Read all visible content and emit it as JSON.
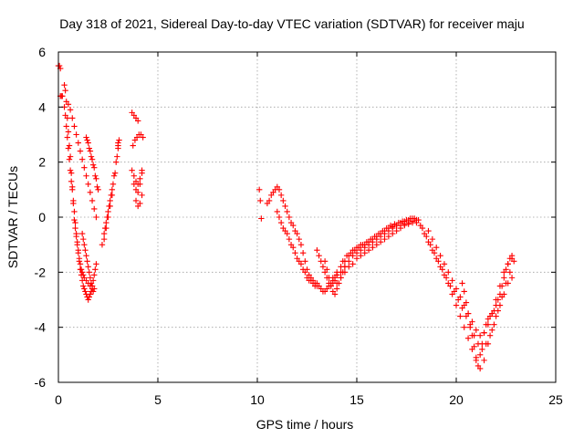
{
  "chart_data": {
    "type": "scatter",
    "title": "Day 318 of 2021, Sidereal Day-to-day VTEC variation (SDTVAR) for receiver maju",
    "xlabel": "GPS time / hours",
    "ylabel": "SDTVAR / TECUs",
    "xlim": [
      0,
      25
    ],
    "ylim": [
      -6,
      6
    ],
    "xticks": [
      "0",
      "5",
      "10",
      "15",
      "20",
      "25"
    ],
    "yticks": [
      "-6",
      "-4",
      "-2",
      "0",
      "2",
      "4",
      "6"
    ],
    "grid": true,
    "marker": "+",
    "color": "#ff0000",
    "series": [
      {
        "name": "SDTVAR",
        "x": [
          0.0,
          0.05,
          0.1,
          0.15,
          0.1,
          0.2,
          0.3,
          0.35,
          0.4,
          0.45,
          0.5,
          0.55,
          0.6,
          0.65,
          0.7,
          0.75,
          0.8,
          0.85,
          0.9,
          0.95,
          1.0,
          1.05,
          1.1,
          1.15,
          1.2,
          1.25,
          1.3,
          1.35,
          1.4,
          1.45,
          1.5,
          1.55,
          1.6,
          1.65,
          1.7,
          1.75,
          1.8,
          1.85,
          1.9,
          0.3,
          0.35,
          0.4,
          0.45,
          0.5,
          0.55,
          0.6,
          0.65,
          0.7,
          0.75,
          0.8,
          0.85,
          0.9,
          0.95,
          1.0,
          1.05,
          1.1,
          1.15,
          1.2,
          1.25,
          1.3,
          1.4,
          1.5,
          1.6,
          1.7,
          1.8,
          0.5,
          0.6,
          0.7,
          0.8,
          0.9,
          1.0,
          1.1,
          1.2,
          1.3,
          1.4,
          1.5,
          1.6,
          1.7,
          1.8,
          1.9,
          1.4,
          1.5,
          1.6,
          1.7,
          1.8,
          1.9,
          2.0,
          1.45,
          1.55,
          1.65,
          1.75,
          1.85,
          1.95,
          1.2,
          1.25,
          1.3,
          1.35,
          1.4,
          1.45,
          1.5,
          1.55,
          1.6,
          1.65,
          1.7,
          1.75,
          2.2,
          2.3,
          2.4,
          2.5,
          2.6,
          2.7,
          2.8,
          2.9,
          3.0,
          2.35,
          2.45,
          2.55,
          2.65,
          2.75,
          2.85,
          2.95,
          3.0,
          2.3,
          2.4,
          2.5,
          2.6,
          2.7,
          3.0,
          3.05,
          3.7,
          3.8,
          3.9,
          4.0,
          3.75,
          3.85,
          3.95,
          4.05,
          4.15,
          4.25,
          3.7,
          3.8,
          3.9,
          4.0,
          4.1,
          4.2,
          3.8,
          3.9,
          4.0,
          4.1,
          4.2,
          3.9,
          4.0,
          4.1,
          4.2,
          10.1,
          10.15,
          10.2,
          10.5,
          10.6,
          10.7,
          10.8,
          10.9,
          11.0,
          11.1,
          11.2,
          11.3,
          11.4,
          11.5,
          11.6,
          11.7,
          11.8,
          11.9,
          12.0,
          12.1,
          12.2,
          12.3,
          12.4,
          12.5,
          12.6,
          12.7,
          12.8,
          12.9,
          13.0,
          11.0,
          11.1,
          11.2,
          11.3,
          11.4,
          11.5,
          11.6,
          11.7,
          11.8,
          11.9,
          12.0,
          12.1,
          12.2,
          12.3,
          12.4,
          12.5,
          12.6,
          12.7,
          12.8,
          12.9,
          13.0,
          13.1,
          13.2,
          13.3,
          13.4,
          13.5,
          13.6,
          13.7,
          13.8,
          13.9,
          14.0,
          13.0,
          13.1,
          13.2,
          13.3,
          13.4,
          13.5,
          13.6,
          13.7,
          13.8,
          13.9,
          14.0,
          13.4,
          13.5,
          13.6,
          13.7,
          13.8,
          13.9,
          14.0,
          14.1,
          14.2,
          14.3,
          14.4,
          13.8,
          14.0,
          14.2,
          14.4,
          14.6,
          14.8,
          15.0,
          15.2,
          15.4,
          15.6,
          15.8,
          16.0,
          16.2,
          16.4,
          16.6,
          16.8,
          17.0,
          17.2,
          17.4,
          17.6,
          17.8,
          18.0,
          14.0,
          14.2,
          14.4,
          14.6,
          14.8,
          15.0,
          15.2,
          15.4,
          15.6,
          15.8,
          16.0,
          16.2,
          16.4,
          16.6,
          16.8,
          17.0,
          17.2,
          17.4,
          17.6,
          17.8,
          18.0,
          14.2,
          14.4,
          14.6,
          14.8,
          15.0,
          15.2,
          15.4,
          15.6,
          15.8,
          16.0,
          16.2,
          16.4,
          16.6,
          16.8,
          17.0,
          17.2,
          17.4,
          17.6,
          17.8,
          18.0,
          14.3,
          14.5,
          14.7,
          14.9,
          15.1,
          15.3,
          15.5,
          15.7,
          15.9,
          16.1,
          16.3,
          16.5,
          16.7,
          16.9,
          17.1,
          17.3,
          17.5,
          17.7,
          17.9,
          18.1,
          18.2,
          18.4,
          18.6,
          18.8,
          19.0,
          19.2,
          19.4,
          19.6,
          19.8,
          20.0,
          20.2,
          20.4,
          20.6,
          20.8,
          21.0,
          21.2,
          21.4,
          21.6,
          21.8,
          22.0,
          22.2,
          22.4,
          22.6,
          22.8,
          18.3,
          18.5,
          18.7,
          18.9,
          19.1,
          19.3,
          19.5,
          19.7,
          19.9,
          20.1,
          20.3,
          20.5,
          20.7,
          20.9,
          21.1,
          21.3,
          21.5,
          21.7,
          21.9,
          22.1,
          22.3,
          22.5,
          22.7,
          22.9,
          18.6,
          18.8,
          19.0,
          19.2,
          19.4,
          19.6,
          19.8,
          20.0,
          20.2,
          20.4,
          20.6,
          20.8,
          21.0,
          21.2,
          21.4,
          21.6,
          21.8,
          22.0,
          22.2,
          22.4,
          22.6,
          22.8,
          20.3,
          20.4,
          20.5,
          20.6,
          20.7,
          20.8,
          20.9,
          21.0,
          21.1,
          21.2,
          21.3,
          21.4,
          21.5,
          21.6,
          21.7,
          21.8,
          21.9,
          22.0,
          22.1,
          22.2,
          22.3,
          22.4,
          22.5,
          22.6,
          22.7,
          22.8
        ],
        "y": [
          5.5,
          5.5,
          5.4,
          4.4,
          4.4,
          4.4,
          4.8,
          4.6,
          4.2,
          3.6,
          3.1,
          2.6,
          2.2,
          1.6,
          1.1,
          0.5,
          -0.1,
          -0.4,
          -0.7,
          -1.0,
          -1.3,
          -1.6,
          -1.9,
          -2.1,
          -2.3,
          -2.5,
          -2.6,
          -2.7,
          -2.8,
          -2.9,
          -3.0,
          -2.9,
          -2.8,
          -2.7,
          -2.5,
          -2.3,
          -2.1,
          -1.9,
          -1.7,
          4.0,
          3.7,
          3.3,
          2.9,
          2.5,
          2.1,
          1.7,
          1.3,
          1.0,
          0.6,
          0.2,
          -0.2,
          -0.6,
          -0.9,
          -1.2,
          -1.5,
          -1.7,
          -1.9,
          -2.0,
          -2.1,
          -2.2,
          -2.3,
          -2.4,
          -2.5,
          -2.5,
          -2.6,
          4.1,
          3.9,
          3.6,
          3.3,
          3.0,
          2.7,
          2.4,
          2.1,
          1.8,
          1.5,
          1.2,
          0.9,
          0.6,
          0.3,
          0.0,
          2.9,
          2.7,
          2.4,
          2.1,
          1.8,
          1.4,
          1.0,
          2.8,
          2.5,
          2.2,
          1.9,
          1.5,
          1.1,
          -0.6,
          -0.8,
          -1.0,
          -1.2,
          -1.4,
          -1.6,
          -1.8,
          -2.0,
          -2.2,
          -2.4,
          -2.6,
          -2.7,
          -1.0,
          -0.6,
          -0.2,
          0.2,
          0.6,
          1.0,
          1.5,
          2.0,
          2.6,
          -0.4,
          0.0,
          0.4,
          0.8,
          1.2,
          1.6,
          2.2,
          2.7,
          -0.8,
          -0.4,
          0.0,
          0.4,
          0.8,
          2.5,
          2.8,
          3.8,
          3.7,
          3.6,
          3.5,
          2.6,
          2.8,
          2.9,
          3.0,
          3.0,
          2.9,
          1.7,
          1.5,
          1.3,
          1.2,
          1.4,
          1.7,
          1.2,
          1.0,
          0.9,
          1.2,
          1.6,
          0.6,
          0.4,
          0.5,
          0.8,
          1.0,
          0.6,
          -0.05,
          0.5,
          0.6,
          0.8,
          0.9,
          1.0,
          1.1,
          1.0,
          0.8,
          0.6,
          0.4,
          0.2,
          0.0,
          -0.2,
          -0.3,
          -0.5,
          -0.6,
          -0.8,
          -1.0,
          -1.3,
          -1.6,
          -1.9,
          -2.1,
          -2.2,
          -2.3,
          -2.4,
          -2.4,
          0.2,
          0.0,
          -0.2,
          -0.4,
          -0.5,
          -0.6,
          -0.8,
          -1.0,
          -1.1,
          -1.3,
          -1.5,
          -1.6,
          -1.7,
          -1.9,
          -2.0,
          -2.2,
          -2.3,
          -2.3,
          -2.4,
          -2.5,
          -2.5,
          -2.5,
          -2.6,
          -2.7,
          -2.7,
          -2.6,
          -2.5,
          -2.4,
          -2.3,
          -2.2,
          -2.1,
          -1.2,
          -1.4,
          -1.6,
          -1.8,
          -2.0,
          -2.2,
          -2.4,
          -2.5,
          -2.4,
          -2.3,
          -2.1,
          -1.6,
          -1.9,
          -2.2,
          -2.5,
          -2.7,
          -2.8,
          -2.6,
          -2.4,
          -2.2,
          -2.0,
          -1.8,
          -2.2,
          -2.0,
          -1.8,
          -1.6,
          -1.4,
          -1.2,
          -1.1,
          -1.0,
          -1.0,
          -0.9,
          -0.8,
          -0.7,
          -0.6,
          -0.5,
          -0.4,
          -0.35,
          -0.3,
          -0.3,
          -0.25,
          -0.2,
          -0.15,
          -0.1,
          -2.4,
          -2.2,
          -2.0,
          -1.8,
          -1.7,
          -1.5,
          -1.4,
          -1.3,
          -1.2,
          -1.1,
          -1.0,
          -0.9,
          -0.8,
          -0.7,
          -0.6,
          -0.5,
          -0.4,
          -0.3,
          -0.25,
          -0.2,
          -0.2,
          -2.0,
          -1.8,
          -1.6,
          -1.4,
          -1.3,
          -1.2,
          -1.1,
          -1.0,
          -0.9,
          -0.8,
          -0.7,
          -0.6,
          -0.5,
          -0.4,
          -0.3,
          -0.2,
          -0.15,
          -0.1,
          -0.05,
          -0.1,
          -1.6,
          -1.4,
          -1.3,
          -1.2,
          -1.1,
          -1.0,
          -0.9,
          -0.8,
          -0.7,
          -0.6,
          -0.5,
          -0.4,
          -0.3,
          -0.25,
          -0.2,
          -0.15,
          -0.1,
          -0.05,
          -0.05,
          -0.1,
          -0.3,
          -0.6,
          -0.9,
          -1.2,
          -1.5,
          -1.8,
          -2.1,
          -2.4,
          -2.8,
          -3.2,
          -3.6,
          -4.0,
          -4.4,
          -4.8,
          -5.2,
          -5.5,
          -5.2,
          -4.6,
          -4.1,
          -3.6,
          -3.2,
          -2.8,
          -2.4,
          -2.2,
          -0.4,
          -0.7,
          -1.0,
          -1.3,
          -1.6,
          -1.9,
          -2.2,
          -2.5,
          -2.7,
          -3.0,
          -3.3,
          -3.6,
          -4.0,
          -4.3,
          -4.6,
          -4.8,
          -4.6,
          -4.3,
          -3.9,
          -3.4,
          -2.9,
          -2.4,
          -2.0,
          -1.6,
          -0.5,
          -0.8,
          -1.1,
          -1.4,
          -1.7,
          -2.0,
          -2.3,
          -2.6,
          -2.9,
          -3.2,
          -3.5,
          -3.8,
          -4.1,
          -4.3,
          -4.2,
          -3.9,
          -3.5,
          -3.0,
          -2.5,
          -2.0,
          -1.7,
          -1.5,
          -2.4,
          -2.7,
          -3.1,
          -3.5,
          -3.9,
          -4.3,
          -4.7,
          -5.1,
          -5.4,
          -5.0,
          -4.6,
          -4.2,
          -3.9,
          -3.7,
          -3.6,
          -3.5,
          -3.4,
          -3.2,
          -3.0,
          -2.8,
          -2.5,
          -2.2,
          -1.9,
          -1.7,
          -1.5,
          -1.4
        ]
      }
    ]
  }
}
